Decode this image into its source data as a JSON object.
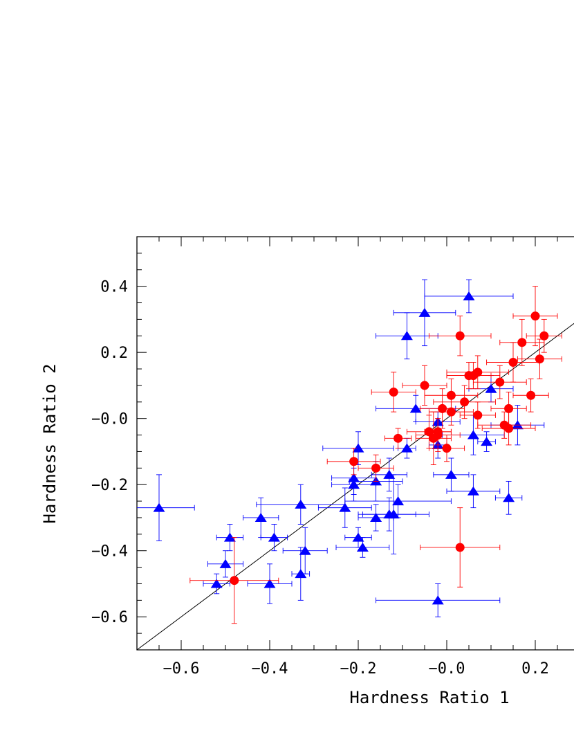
{
  "chart_data": {
    "type": "scatter",
    "title": "",
    "xlabel": "Hardness Ratio 1",
    "ylabel": "Hardness Ratio 2",
    "xlim": [
      -0.7,
      0.3
    ],
    "ylim": [
      -0.7,
      0.55
    ],
    "x_ticks": [
      -0.6,
      -0.4,
      -0.2,
      0.0,
      0.2
    ],
    "x_tick_labels": [
      "−0.6",
      "−0.4",
      "−0.2",
      "−0.0",
      "0.2"
    ],
    "y_ticks": [
      -0.6,
      -0.4,
      -0.2,
      0.0,
      0.2,
      0.4
    ],
    "y_tick_labels": [
      "−0.6",
      "−0.4",
      "−0.2",
      "−0.0",
      "0.2",
      "0.4"
    ],
    "grid": false,
    "line": {
      "x": [
        -0.7,
        0.3
      ],
      "y": [
        -0.7,
        0.3
      ],
      "color": "#000000"
    },
    "series": [
      {
        "marker": "triangle",
        "color": "#0000ff",
        "points": [
          {
            "x": -0.65,
            "y": -0.27,
            "xerr": 0.08,
            "yerr": 0.1
          },
          {
            "x": -0.52,
            "y": -0.5,
            "xerr": 0.03,
            "yerr": 0.03
          },
          {
            "x": -0.5,
            "y": -0.44,
            "xerr": 0.04,
            "yerr": 0.04
          },
          {
            "x": -0.49,
            "y": -0.36,
            "xerr": 0.03,
            "yerr": 0.04
          },
          {
            "x": -0.42,
            "y": -0.3,
            "xerr": 0.04,
            "yerr": 0.06
          },
          {
            "x": -0.4,
            "y": -0.5,
            "xerr": 0.05,
            "yerr": 0.06
          },
          {
            "x": -0.39,
            "y": -0.36,
            "xerr": 0.03,
            "yerr": 0.04
          },
          {
            "x": -0.33,
            "y": -0.26,
            "xerr": 0.1,
            "yerr": 0.06
          },
          {
            "x": -0.33,
            "y": -0.47,
            "xerr": 0.02,
            "yerr": 0.08
          },
          {
            "x": -0.32,
            "y": -0.4,
            "xerr": 0.05,
            "yerr": 0.07
          },
          {
            "x": -0.23,
            "y": -0.27,
            "xerr": 0.06,
            "yerr": 0.06
          },
          {
            "x": -0.21,
            "y": -0.18,
            "xerr": 0.05,
            "yerr": 0.05
          },
          {
            "x": -0.21,
            "y": -0.2,
            "xerr": 0.05,
            "yerr": 0.05
          },
          {
            "x": -0.2,
            "y": -0.09,
            "xerr": 0.08,
            "yerr": 0.05
          },
          {
            "x": -0.2,
            "y": -0.36,
            "xerr": 0.03,
            "yerr": 0.03
          },
          {
            "x": -0.19,
            "y": -0.39,
            "xerr": 0.06,
            "yerr": 0.03
          },
          {
            "x": -0.16,
            "y": -0.3,
            "xerr": 0.04,
            "yerr": 0.04
          },
          {
            "x": -0.16,
            "y": -0.19,
            "xerr": 0.06,
            "yerr": 0.06
          },
          {
            "x": -0.13,
            "y": -0.17,
            "xerr": 0.04,
            "yerr": 0.05
          },
          {
            "x": -0.13,
            "y": -0.29,
            "xerr": 0.06,
            "yerr": 0.05
          },
          {
            "x": -0.12,
            "y": -0.29,
            "xerr": 0.08,
            "yerr": 0.12
          },
          {
            "x": -0.11,
            "y": -0.25,
            "xerr": 0.12,
            "yerr": 0.05
          },
          {
            "x": -0.09,
            "y": -0.09,
            "xerr": 0.02,
            "yerr": 0.03
          },
          {
            "x": -0.09,
            "y": 0.25,
            "xerr": 0.07,
            "yerr": 0.07
          },
          {
            "x": -0.07,
            "y": 0.03,
            "xerr": 0.09,
            "yerr": 0.04
          },
          {
            "x": -0.05,
            "y": 0.32,
            "xerr": 0.07,
            "yerr": 0.1
          },
          {
            "x": -0.02,
            "y": -0.01,
            "xerr": 0.05,
            "yerr": 0.03
          },
          {
            "x": -0.02,
            "y": -0.08,
            "xerr": 0.02,
            "yerr": 0.04
          },
          {
            "x": -0.02,
            "y": -0.55,
            "xerr": 0.14,
            "yerr": 0.05
          },
          {
            "x": 0.01,
            "y": -0.17,
            "xerr": 0.04,
            "yerr": 0.05
          },
          {
            "x": 0.05,
            "y": 0.37,
            "xerr": 0.1,
            "yerr": 0.05
          },
          {
            "x": 0.06,
            "y": -0.05,
            "xerr": 0.07,
            "yerr": 0.06
          },
          {
            "x": 0.06,
            "y": -0.22,
            "xerr": 0.06,
            "yerr": 0.05
          },
          {
            "x": 0.09,
            "y": -0.07,
            "xerr": 0.02,
            "yerr": 0.03
          },
          {
            "x": 0.1,
            "y": 0.09,
            "xerr": 0.05,
            "yerr": 0.04
          },
          {
            "x": 0.16,
            "y": -0.02,
            "xerr": 0.06,
            "yerr": 0.06
          },
          {
            "x": 0.14,
            "y": -0.24,
            "xerr": 0.03,
            "yerr": 0.05
          }
        ]
      },
      {
        "marker": "circle",
        "color": "#ff0000",
        "points": [
          {
            "x": -0.48,
            "y": -0.49,
            "xerr": 0.1,
            "yerr": 0.13
          },
          {
            "x": -0.21,
            "y": -0.13,
            "xerr": 0.06,
            "yerr": 0.04
          },
          {
            "x": -0.16,
            "y": -0.15,
            "xerr": 0.04,
            "yerr": 0.04
          },
          {
            "x": -0.12,
            "y": 0.08,
            "xerr": 0.05,
            "yerr": 0.06
          },
          {
            "x": -0.11,
            "y": -0.06,
            "xerr": 0.03,
            "yerr": 0.03
          },
          {
            "x": -0.05,
            "y": 0.1,
            "xerr": 0.05,
            "yerr": 0.06
          },
          {
            "x": -0.04,
            "y": -0.04,
            "xerr": 0.05,
            "yerr": 0.05
          },
          {
            "x": -0.03,
            "y": -0.06,
            "xerr": 0.04,
            "yerr": 0.08
          },
          {
            "x": -0.02,
            "y": -0.05,
            "xerr": 0.05,
            "yerr": 0.05
          },
          {
            "x": -0.02,
            "y": -0.04,
            "xerr": 0.03,
            "yerr": 0.04
          },
          {
            "x": -0.01,
            "y": 0.03,
            "xerr": 0.05,
            "yerr": 0.06
          },
          {
            "x": 0.0,
            "y": -0.09,
            "xerr": 0.04,
            "yerr": 0.04
          },
          {
            "x": 0.01,
            "y": 0.02,
            "xerr": 0.05,
            "yerr": 0.04
          },
          {
            "x": 0.01,
            "y": 0.07,
            "xerr": 0.06,
            "yerr": 0.05
          },
          {
            "x": 0.03,
            "y": 0.25,
            "xerr": 0.07,
            "yerr": 0.06
          },
          {
            "x": 0.03,
            "y": -0.39,
            "xerr": 0.09,
            "yerr": 0.12
          },
          {
            "x": 0.04,
            "y": 0.05,
            "xerr": 0.07,
            "yerr": 0.05
          },
          {
            "x": 0.05,
            "y": 0.13,
            "xerr": 0.05,
            "yerr": 0.04
          },
          {
            "x": 0.06,
            "y": 0.13,
            "xerr": 0.06,
            "yerr": 0.04
          },
          {
            "x": 0.07,
            "y": 0.14,
            "xerr": 0.07,
            "yerr": 0.05
          },
          {
            "x": 0.07,
            "y": 0.01,
            "xerr": 0.04,
            "yerr": 0.04
          },
          {
            "x": 0.12,
            "y": 0.11,
            "xerr": 0.06,
            "yerr": 0.05
          },
          {
            "x": 0.13,
            "y": -0.02,
            "xerr": 0.06,
            "yerr": 0.04
          },
          {
            "x": 0.14,
            "y": -0.03,
            "xerr": 0.06,
            "yerr": 0.05
          },
          {
            "x": 0.14,
            "y": 0.03,
            "xerr": 0.04,
            "yerr": 0.05
          },
          {
            "x": 0.15,
            "y": 0.17,
            "xerr": 0.06,
            "yerr": 0.06
          },
          {
            "x": 0.17,
            "y": 0.23,
            "xerr": 0.05,
            "yerr": 0.07
          },
          {
            "x": 0.19,
            "y": 0.07,
            "xerr": 0.04,
            "yerr": 0.05
          },
          {
            "x": 0.2,
            "y": 0.31,
            "xerr": 0.05,
            "yerr": 0.09
          },
          {
            "x": 0.21,
            "y": 0.18,
            "xerr": 0.05,
            "yerr": 0.06
          },
          {
            "x": 0.22,
            "y": 0.25,
            "xerr": 0.04,
            "yerr": 0.05
          }
        ]
      }
    ]
  }
}
